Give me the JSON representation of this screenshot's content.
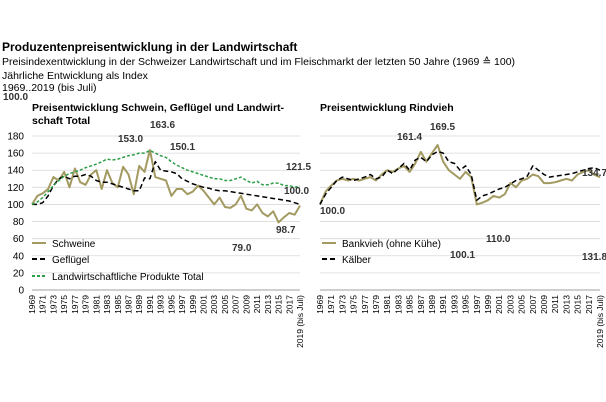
{
  "header": {
    "title": "Produzentenpreisentwicklung  in der Landwirtschaft",
    "subtitle": "Preisindexentwicklung in der Schweizer Landwirtschaft und im Fleischmarkt der letzten 50 Jahre (1969 ≙ 100)",
    "line3": "Jährliche Entwicklung als Index",
    "line4": "1969..2019 (bis Juli)"
  },
  "colors": {
    "olive": "#a39a61",
    "black": "#000000",
    "green": "#2e9e48",
    "grid": "#d9d9d9"
  },
  "chart_data": [
    {
      "type": "line",
      "title": "Preisentwicklung Schwein, Geflügel und Landwirt- schaft Total",
      "ylim": [
        0,
        180
      ],
      "yticks": [
        "0",
        "20",
        "40",
        "60",
        "80",
        "100",
        "120",
        "140",
        "160",
        "180"
      ],
      "xticks": [
        "1969",
        "1971",
        "1973",
        "1975",
        "1977",
        "1979",
        "1981",
        "1983",
        "1985",
        "1987",
        "1989",
        "1991",
        "1993",
        "1995",
        "1997",
        "1999",
        "2001",
        "2003",
        "2005",
        "2007",
        "2009",
        "2011",
        "2013",
        "2015",
        "2017",
        "2019 (bis Juli)"
      ],
      "x": [
        "1969",
        "1970",
        "1971",
        "1972",
        "1973",
        "1974",
        "1975",
        "1976",
        "1977",
        "1978",
        "1979",
        "1980",
        "1981",
        "1982",
        "1983",
        "1984",
        "1985",
        "1986",
        "1987",
        "1988",
        "1989",
        "1990",
        "1991",
        "1992",
        "1993",
        "1994",
        "1995",
        "1996",
        "1997",
        "1998",
        "1999",
        "2000",
        "2001",
        "2002",
        "2003",
        "2004",
        "2005",
        "2006",
        "2007",
        "2008",
        "2009",
        "2010",
        "2011",
        "2012",
        "2013",
        "2014",
        "2015",
        "2016",
        "2017",
        "2018",
        "2019 (bis Juli)"
      ],
      "series": [
        {
          "name": "Schweine",
          "style": "solid",
          "color": "#a39a61",
          "values": [
            100,
            110,
            113,
            118,
            132,
            128,
            138,
            120,
            142,
            126,
            123,
            135,
            140,
            118,
            140,
            125,
            120,
            144,
            135,
            112,
            145,
            138,
            163.6,
            132,
            130,
            128,
            110,
            118,
            118,
            112,
            115,
            122,
            116,
            108,
            100,
            108,
            97,
            96,
            100,
            110,
            95,
            93,
            100,
            90,
            86,
            92,
            79,
            85,
            90,
            88,
            98.7
          ]
        },
        {
          "name": "Geflügel",
          "style": "dashed",
          "color": "#000000",
          "values": [
            100,
            100,
            102,
            110,
            122,
            130,
            133,
            130,
            133,
            133,
            135,
            133,
            128,
            126,
            126,
            124,
            122,
            120,
            118,
            116,
            116,
            131,
            130,
            150.1,
            140,
            139,
            138,
            136,
            130,
            127,
            124,
            122,
            120,
            119,
            117,
            116,
            116,
            115,
            114,
            113,
            112,
            111,
            110,
            109,
            108,
            107,
            106,
            105,
            104,
            102,
            100.0
          ]
        },
        {
          "name": "Landwirtschaftliche Produkte Total",
          "style": "dotted",
          "color": "#2e9e48",
          "values": [
            100,
            103,
            108,
            115,
            122,
            128,
            133,
            136,
            138,
            140,
            143,
            145,
            147,
            150,
            153.0,
            152,
            153,
            155,
            157,
            158,
            160,
            160,
            163,
            160,
            157,
            155,
            150,
            146,
            143,
            140,
            138,
            136,
            134,
            132,
            130,
            130,
            128,
            128,
            130,
            132,
            128,
            125,
            127,
            123,
            123,
            125,
            125,
            122,
            122,
            120,
            121.5
          ]
        }
      ],
      "annotations": [
        "100.0",
        "153.0",
        "163.6",
        "150.1",
        "121.5",
        "100.0",
        "98.7",
        "79.0"
      ],
      "legend": "bottom-left"
    },
    {
      "type": "line",
      "title": "Preisentwicklung Rindvieh",
      "ylim": [
        0,
        180
      ],
      "xticks": [
        "1969",
        "1971",
        "1973",
        "1975",
        "1977",
        "1979",
        "1981",
        "1983",
        "1985",
        "1987",
        "1989",
        "1991",
        "1993",
        "1995",
        "1997",
        "1999",
        "2001",
        "2003",
        "2005",
        "2007",
        "2009",
        "2011",
        "2013",
        "2015",
        "2017",
        "2019 (bis Juli)"
      ],
      "x": [
        "1969",
        "1970",
        "1971",
        "1972",
        "1973",
        "1974",
        "1975",
        "1976",
        "1977",
        "1978",
        "1979",
        "1980",
        "1981",
        "1982",
        "1983",
        "1984",
        "1985",
        "1986",
        "1987",
        "1988",
        "1989",
        "1990",
        "1991",
        "1992",
        "1993",
        "1994",
        "1995",
        "1996",
        "1997",
        "1998",
        "1999",
        "2000",
        "2001",
        "2002",
        "2003",
        "2004",
        "2005",
        "2006",
        "2007",
        "2008",
        "2009",
        "2010",
        "2011",
        "2012",
        "2013",
        "2014",
        "2015",
        "2016",
        "2017",
        "2018",
        "2019 (bis Juli)"
      ],
      "series": [
        {
          "name": "Bankvieh (ohne Kühe)",
          "style": "solid",
          "color": "#a39a61",
          "values": [
            100,
            115,
            122,
            128,
            130,
            128,
            130,
            128,
            130,
            132,
            128,
            135,
            140,
            138,
            142,
            145,
            138,
            148,
            161.4,
            150,
            160,
            169.5,
            150,
            140,
            135,
            130,
            138,
            132,
            100.1,
            102,
            105,
            110.0,
            108,
            112,
            125,
            120,
            128,
            130,
            135,
            133,
            125,
            125,
            126,
            128,
            130,
            128,
            135,
            138,
            140,
            134.7,
            131.8
          ]
        },
        {
          "name": "Kälber",
          "style": "dashed",
          "color": "#000000",
          "values": [
            100,
            112,
            120,
            128,
            132,
            130,
            128,
            130,
            132,
            135,
            130,
            132,
            140,
            136,
            142,
            148,
            140,
            152,
            155,
            150,
            158,
            162,
            160,
            150,
            148,
            140,
            145,
            135,
            105,
            110,
            112,
            115,
            118,
            120,
            124,
            128,
            130,
            133,
            145,
            140,
            135,
            132,
            133,
            134,
            135,
            136,
            138,
            140,
            142,
            143,
            140
          ]
        }
      ],
      "annotations": [
        "100.0",
        "161.4",
        "169.5",
        "134.7",
        "110.0",
        "100.1",
        "131.8"
      ],
      "legend": "bottom-left"
    }
  ]
}
